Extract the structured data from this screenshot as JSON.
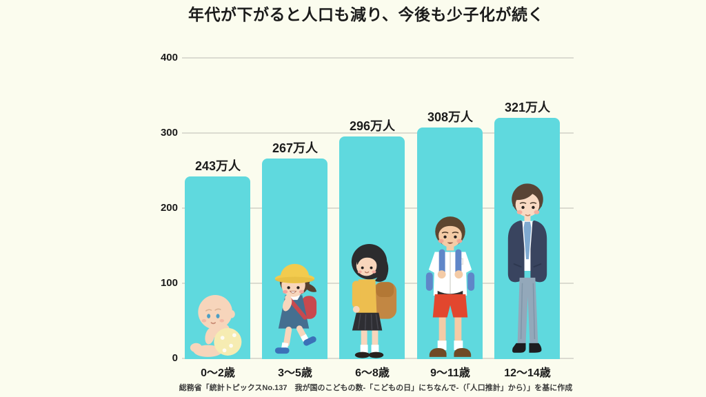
{
  "page": {
    "background": "#FBFCEE"
  },
  "chart_data": {
    "type": "bar",
    "title": "年代が下がると人口も減り、今後も少子化が続く",
    "categories": [
      "0〜2歳",
      "3〜5歳",
      "6〜8歳",
      "9〜11歳",
      "12〜14歳"
    ],
    "values": [
      243,
      267,
      296,
      308,
      321
    ],
    "value_labels": [
      "243万人",
      "267万人",
      "296万人",
      "308万人",
      "321万人"
    ],
    "unit": "万人",
    "xlabel": "",
    "ylabel": "",
    "ylim": [
      0,
      400
    ],
    "yticks": [
      0,
      100,
      200,
      300,
      400
    ],
    "grid": true,
    "legend": false,
    "bar_color": "#5FD9DE",
    "grid_color": "#DBDBD0",
    "text_color": "#1B1B1B",
    "illustrations": [
      "baby",
      "kindergarten-child",
      "elementary-school-girl",
      "elementary-school-boy",
      "junior-high-school-student"
    ],
    "source": "総務省「統計トピックスNo.137　我が国のこどもの数-「こどもの日」にちなんで-（「人口推計」から）」を基に作成"
  }
}
